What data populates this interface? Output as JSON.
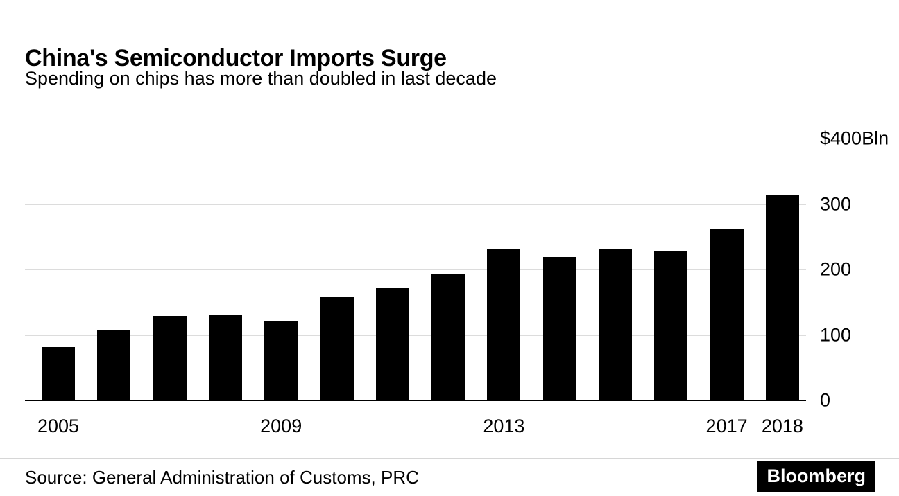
{
  "chart_data": {
    "type": "bar",
    "title": "China's Semiconductor Imports Surge",
    "subtitle": "Spending on chips has more than doubled in last decade",
    "categories": [
      "2005",
      "2006",
      "2007",
      "2008",
      "2009",
      "2010",
      "2011",
      "2012",
      "2013",
      "2014",
      "2015",
      "2016",
      "2017",
      "2018"
    ],
    "values": [
      80,
      107,
      128,
      129,
      121,
      157,
      170,
      192,
      231,
      218,
      230,
      228,
      260,
      312
    ],
    "unit": "$Bln",
    "ylim": [
      0,
      400
    ],
    "yticks": [
      {
        "value": 400,
        "label": "$400Bln"
      },
      {
        "value": 300,
        "label": "300"
      },
      {
        "value": 200,
        "label": "200"
      },
      {
        "value": 100,
        "label": "100"
      },
      {
        "value": 0,
        "label": "0"
      }
    ],
    "xticks": [
      "2005",
      "2009",
      "2013",
      "2017",
      "2018"
    ],
    "bar_color": "#000000",
    "grid": true,
    "legend": "none",
    "source": "Source: General Administration of Customs, PRC",
    "brand": "Bloomberg"
  }
}
